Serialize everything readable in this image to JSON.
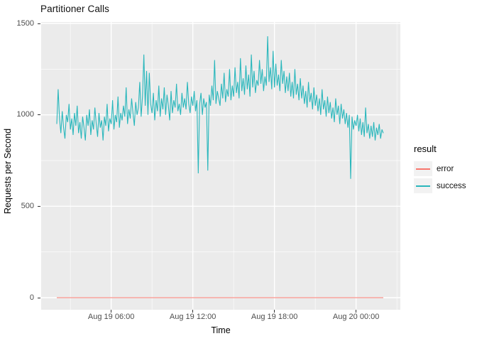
{
  "title": "Partitioner Calls",
  "colors": {
    "background": "#FFFFFF",
    "panel_bg": "#EBEBEB",
    "grid": "#FFFFFF",
    "tick_mark": "#333333",
    "tick_label": "#4D4D4D",
    "axis_title": "#000000",
    "error": "#F8766D",
    "success": "#2AB7BC",
    "legend_key_bg": "#F2F2F2"
  },
  "chart_data": {
    "type": "line",
    "title": "Partitioner Calls",
    "xlabel": "Time",
    "ylabel": "Requests per Second",
    "ylim": [
      0,
      1500
    ],
    "yticks": [
      0,
      500,
      1000,
      1500
    ],
    "ytick_labels": [
      "0",
      "500",
      "1000",
      "1500"
    ],
    "yminor": [
      250,
      750,
      1250
    ],
    "xtick_labels": [
      "Aug 19 06:00",
      "Aug 19 12:00",
      "Aug 19 18:00",
      "Aug 20 00:00"
    ],
    "x_start": "Aug 19 02:00",
    "x_end": "Aug 20 02:00",
    "x_span_hours": 24,
    "x_major_hours_from_start": [
      4,
      10,
      16,
      22
    ],
    "x_minor_hours_from_start": [
      1,
      7,
      13,
      19,
      25
    ],
    "grid": true,
    "legend": {
      "title": "result",
      "position": "right",
      "entries": [
        {
          "label": "error",
          "color": "#F8766D"
        },
        {
          "label": "success",
          "color": "#2AB7BC"
        }
      ]
    },
    "series": [
      {
        "name": "error",
        "color": "#F8766D",
        "constant_value": 0,
        "note": "flat line at 0 across full time range"
      },
      {
        "name": "success",
        "color": "#2AB7BC",
        "sample_interval_minutes": 6,
        "values": [
          950,
          1140,
          980,
          900,
          1020,
          930,
          870,
          1000,
          960,
          1060,
          920,
          980,
          890,
          1010,
          940,
          1050,
          900,
          960,
          870,
          990,
          930,
          860,
          1000,
          940,
          1030,
          890,
          970,
          920,
          1040,
          950,
          880,
          1010,
          930,
          970,
          860,
          990,
          940,
          1060,
          910,
          980,
          950,
          1080,
          920,
          1000,
          960,
          1100,
          930,
          1010,
          970,
          1050,
          990,
          1150,
          950,
          1030,
          980,
          1090,
          1010,
          940,
          1070,
          1000,
          1040,
          1180,
          990,
          1100,
          1330,
          1050,
          1240,
          1000,
          1230,
          1060,
          1010,
          1120,
          970,
          1080,
          1020,
          1160,
          990,
          1090,
          1030,
          1150,
          1000,
          1110,
          1050,
          970,
          1130,
          1010,
          1080,
          1040,
          1170,
          1020,
          1060,
          1000,
          1120,
          1040,
          1090,
          1030,
          1180,
          1060,
          1010,
          1100,
          1050,
          1130,
          1020,
          1080,
          680,
          1060,
          1120,
          1000,
          1090,
          1040,
          1070,
          695,
          1110,
          1050,
          1160,
          1080,
          1300,
          1060,
          1130,
          1090,
          1050,
          1170,
          1090,
          1230,
          1070,
          1140,
          1100,
          1250,
          1080,
          1160,
          1100,
          1260,
          1120,
          1180,
          1090,
          1310,
          1130,
          1200,
          1110,
          1270,
          1140,
          1220,
          1100,
          1330,
          1150,
          1240,
          1120,
          1190,
          1160,
          1300,
          1170,
          1250,
          1130,
          1210,
          1160,
          1430,
          1180,
          1260,
          1140,
          1350,
          1150,
          1280,
          1160,
          1220,
          1130,
          1300,
          1170,
          1240,
          1120,
          1210,
          1130,
          1230,
          1100,
          1180,
          1090,
          1250,
          1110,
          1170,
          1080,
          1200,
          1090,
          1160,
          1060,
          1130,
          1040,
          1180,
          1070,
          1120,
          1030,
          1150,
          1050,
          1110,
          1020,
          1090,
          1000,
          1140,
          1030,
          1080,
          990,
          1100,
          1010,
          1070,
          980,
          1040,
          960,
          1090,
          1000,
          1050,
          950,
          1060,
          980,
          1030,
          950,
          1010,
          930,
          1000,
          650,
          990,
          920,
          970,
          940,
          1000,
          910,
          980,
          890,
          960,
          880,
          1040,
          900,
          950,
          870,
          940,
          880,
          960,
          860,
          930,
          890,
          950,
          870,
          920,
          900
        ]
      }
    ]
  }
}
